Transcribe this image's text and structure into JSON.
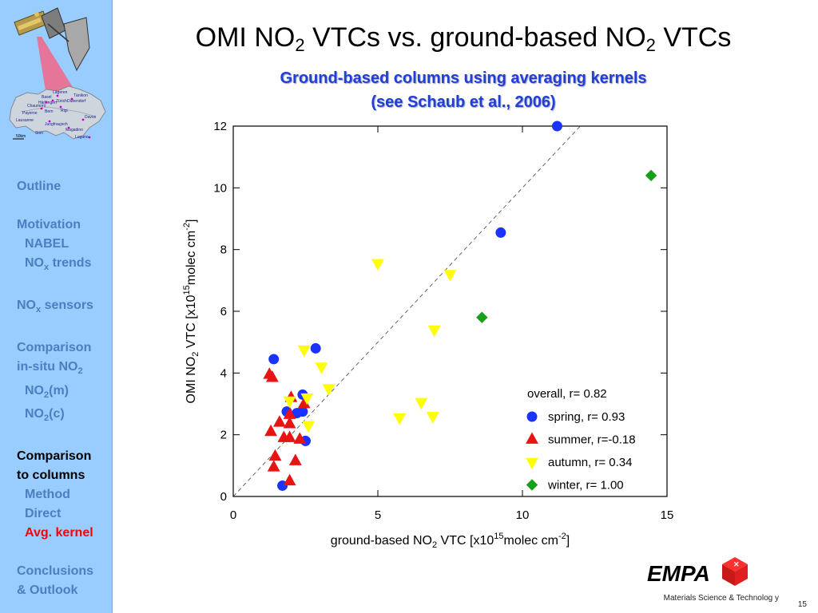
{
  "slide": {
    "title_main": "OMI NO",
    "title_sub1": "2",
    "title_mid": " VTCs vs. ground-based NO",
    "title_sub2": "2",
    "title_end": " VTCs",
    "subtitle_line1": "Ground-based columns using averaging kernels",
    "subtitle_line2": "(see Schaub et al., 2006)",
    "footer": "Materials Science & Technolog y",
    "page_number": "15",
    "logo_text": "EMPA"
  },
  "map": {
    "labels": [
      "Lägeren",
      "Tänikon",
      "Basel",
      "Dübendorf",
      "Härkingen",
      "Zürich",
      "Chaumont",
      "Bern",
      "Rigi",
      "Payerne",
      "Davos",
      "Lausanne",
      "Jungfraujoch",
      "Magadino",
      "Sion",
      "Lugano",
      "50km"
    ]
  },
  "nav": {
    "items": [
      {
        "label": "Outline",
        "sub": "",
        "sup": "",
        "rest": "",
        "indent": false,
        "gap": false,
        "state": "normal"
      },
      {
        "label": "Motivation",
        "sub": "",
        "sup": "",
        "rest": "",
        "indent": false,
        "gap": true,
        "state": "normal"
      },
      {
        "label": "NABEL",
        "sub": "",
        "sup": "",
        "rest": "",
        "indent": true,
        "gap": false,
        "state": "normal"
      },
      {
        "label": "NO",
        "sub": "x",
        "sup": "",
        "rest": " trends",
        "indent": true,
        "gap": false,
        "state": "normal"
      },
      {
        "label": "NO",
        "sub": "x",
        "sup": "",
        "rest": " sensors",
        "indent": false,
        "gap": true,
        "state": "normal"
      },
      {
        "label": "Comparison",
        "sub": "",
        "sup": "",
        "rest": "",
        "indent": false,
        "gap": true,
        "state": "normal"
      },
      {
        "label": "in-situ NO",
        "sub": "2",
        "sup": "",
        "rest": "",
        "indent": false,
        "gap": false,
        "state": "normal"
      },
      {
        "label": "NO",
        "sub": "2",
        "sup": "",
        "rest": "(m)",
        "indent": true,
        "gap": false,
        "state": "normal"
      },
      {
        "label": "NO",
        "sub": "2",
        "sup": "",
        "rest": "(c)",
        "indent": true,
        "gap": false,
        "state": "normal"
      },
      {
        "label": "Comparison",
        "sub": "",
        "sup": "",
        "rest": "",
        "indent": false,
        "gap": true,
        "state": "current"
      },
      {
        "label": "to columns",
        "sub": "",
        "sup": "",
        "rest": "",
        "indent": false,
        "gap": false,
        "state": "current"
      },
      {
        "label": "Method",
        "sub": "",
        "sup": "",
        "rest": "",
        "indent": true,
        "gap": false,
        "state": "normal"
      },
      {
        "label": "Direct",
        "sub": "",
        "sup": "",
        "rest": "",
        "indent": true,
        "gap": false,
        "state": "normal"
      },
      {
        "label": "Avg. kernel",
        "sub": "",
        "sup": "",
        "rest": "",
        "indent": true,
        "gap": false,
        "state": "active"
      },
      {
        "label": "Conclusions",
        "sub": "",
        "sup": "",
        "rest": "",
        "indent": false,
        "gap": true,
        "state": "normal"
      },
      {
        "label": "& Outlook",
        "sub": "",
        "sup": "",
        "rest": "",
        "indent": false,
        "gap": false,
        "state": "normal"
      }
    ]
  },
  "chart_data": {
    "type": "scatter",
    "xlim": [
      0,
      15
    ],
    "ylim": [
      0,
      12
    ],
    "xticks": [
      0,
      5,
      10,
      15
    ],
    "yticks": [
      0,
      2,
      4,
      6,
      8,
      10,
      12
    ],
    "grid": false,
    "reference_line": "1:1 dashed",
    "xlabel": {
      "pre": "ground-based NO",
      "sub": "2",
      "mid": " VTC [x10",
      "sup": "15",
      "mid2": "molec cm",
      "sup2": "-2",
      "post": "]"
    },
    "ylabel": {
      "pre": "OMI NO",
      "sub": "2",
      "mid": " VTC [x10",
      "sup": "15",
      "mid2": "molec cm",
      "sup2": "-2",
      "post": "]"
    },
    "legend_header": "overall, r= 0.82",
    "legend_placement": "lower-right",
    "series": [
      {
        "name": "spring, r= 0.93",
        "marker": "circle",
        "color": "#1a33ff",
        "points": [
          [
            1.4,
            4.45
          ],
          [
            2.85,
            4.8
          ],
          [
            2.4,
            3.3
          ],
          [
            2.4,
            2.75
          ],
          [
            2.2,
            2.7
          ],
          [
            1.85,
            2.75
          ],
          [
            2.5,
            1.8
          ],
          [
            1.7,
            0.35
          ],
          [
            9.25,
            8.55
          ],
          [
            11.2,
            12.0
          ]
        ]
      },
      {
        "name": "summer, r=-0.18",
        "marker": "triangle-up",
        "color": "#e81414",
        "points": [
          [
            1.25,
            3.95
          ],
          [
            1.35,
            3.85
          ],
          [
            2.0,
            3.2
          ],
          [
            2.45,
            3.0
          ],
          [
            1.95,
            2.65
          ],
          [
            1.6,
            2.4
          ],
          [
            1.95,
            2.35
          ],
          [
            1.3,
            2.1
          ],
          [
            1.75,
            1.9
          ],
          [
            1.95,
            1.9
          ],
          [
            2.3,
            1.85
          ],
          [
            1.45,
            1.3
          ],
          [
            2.15,
            1.15
          ],
          [
            1.4,
            0.95
          ],
          [
            1.95,
            0.5
          ]
        ]
      },
      {
        "name": "autumn, r= 0.34",
        "marker": "triangle-down",
        "color": "#ffff00",
        "points": [
          [
            5.0,
            7.55
          ],
          [
            7.5,
            7.2
          ],
          [
            6.95,
            5.4
          ],
          [
            2.45,
            4.75
          ],
          [
            3.05,
            4.2
          ],
          [
            3.3,
            3.5
          ],
          [
            2.55,
            3.2
          ],
          [
            1.95,
            3.1
          ],
          [
            6.5,
            3.05
          ],
          [
            5.75,
            2.55
          ],
          [
            6.9,
            2.6
          ],
          [
            2.6,
            2.3
          ]
        ]
      },
      {
        "name": "winter, r= 1.00",
        "marker": "diamond",
        "color": "#17a017",
        "points": [
          [
            8.6,
            5.8
          ],
          [
            14.45,
            10.4
          ]
        ]
      }
    ]
  }
}
